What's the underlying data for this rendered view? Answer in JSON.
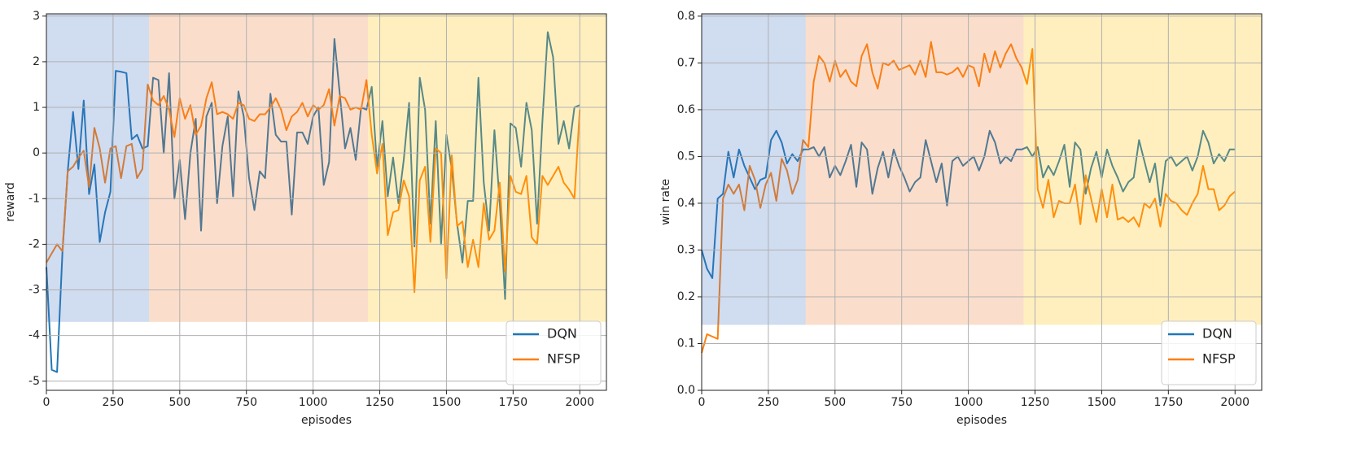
{
  "chart_data": [
    {
      "type": "line",
      "xlabel": "episodes",
      "ylabel": "reward",
      "xlim": [
        0,
        2100
      ],
      "ylim": [
        -5.2,
        3.05
      ],
      "xticks": [
        0,
        250,
        500,
        750,
        1000,
        1250,
        1500,
        1750,
        2000
      ],
      "yticks": [
        -5,
        -4,
        -3,
        -2,
        -1,
        0,
        1,
        2,
        3
      ],
      "grid": true,
      "legend": "lower right",
      "regions": [
        {
          "start": 0,
          "end": 385,
          "color": "#4472c4"
        },
        {
          "start": 385,
          "end": 1206,
          "color": "#ed7d31"
        },
        {
          "start": 1206,
          "end": 2100,
          "color": "#ffc000"
        }
      ],
      "region_bottom": -3.7,
      "region_alpha": 0.25,
      "x": [
        0,
        20,
        40,
        60,
        80,
        100,
        120,
        140,
        160,
        180,
        200,
        220,
        240,
        260,
        280,
        300,
        320,
        340,
        360,
        380,
        400,
        420,
        440,
        460,
        480,
        500,
        520,
        540,
        560,
        580,
        600,
        620,
        640,
        660,
        680,
        700,
        720,
        740,
        760,
        780,
        800,
        820,
        840,
        860,
        880,
        900,
        920,
        940,
        960,
        980,
        1000,
        1020,
        1040,
        1060,
        1080,
        1100,
        1120,
        1140,
        1160,
        1180,
        1200,
        1220,
        1240,
        1260,
        1280,
        1300,
        1320,
        1340,
        1360,
        1380,
        1400,
        1420,
        1440,
        1460,
        1480,
        1500,
        1520,
        1540,
        1560,
        1580,
        1600,
        1620,
        1640,
        1660,
        1680,
        1700,
        1720,
        1740,
        1760,
        1780,
        1800,
        1820,
        1840,
        1860,
        1880,
        1900,
        1920,
        1940,
        1960,
        1980,
        2000
      ],
      "series": [
        {
          "name": "DQN",
          "color": "#1f77b4",
          "values": [
            -2.5,
            -4.75,
            -4.8,
            -2.2,
            -0.4,
            0.9,
            -0.35,
            1.15,
            -0.9,
            -0.25,
            -1.95,
            -1.3,
            -0.85,
            1.8,
            1.78,
            1.75,
            0.3,
            0.4,
            0.1,
            0.15,
            1.65,
            1.6,
            0.0,
            1.75,
            -1.0,
            -0.15,
            -1.45,
            0.0,
            0.75,
            -1.7,
            0.8,
            1.1,
            -1.1,
            0.15,
            0.8,
            -0.95,
            1.35,
            0.8,
            -0.55,
            -1.25,
            -0.4,
            -0.55,
            1.3,
            0.4,
            0.25,
            0.25,
            -1.35,
            0.45,
            0.45,
            0.2,
            0.8,
            1.0,
            -0.7,
            -0.2,
            2.5,
            1.3,
            0.1,
            0.55,
            -0.15,
            1.0,
            0.95,
            1.45,
            -0.3,
            0.7,
            -0.95,
            -0.1,
            -1.1,
            -0.15,
            1.1,
            -2.05,
            1.65,
            0.95,
            -1.55,
            0.7,
            -2.0,
            0.4,
            -0.35,
            -1.55,
            -2.4,
            -1.05,
            -1.05,
            1.65,
            -0.65,
            -1.7,
            0.5,
            -1.1,
            -3.2,
            0.65,
            0.55,
            -0.3,
            1.1,
            0.5,
            -1.55,
            0.7,
            2.65,
            2.1,
            0.2,
            0.7,
            0.1,
            1.0,
            1.05
          ]
        },
        {
          "name": "NFSP",
          "color": "#ff7f0e",
          "values": [
            -2.4,
            -2.2,
            -2.0,
            -2.15,
            -0.4,
            -0.3,
            -0.1,
            0.05,
            -0.75,
            0.55,
            0.1,
            -0.65,
            0.1,
            0.15,
            -0.55,
            0.15,
            0.2,
            -0.55,
            -0.35,
            1.5,
            1.15,
            1.05,
            1.25,
            0.95,
            0.35,
            1.2,
            0.75,
            1.05,
            0.4,
            0.6,
            1.2,
            1.55,
            0.85,
            0.9,
            0.85,
            0.75,
            1.1,
            1.05,
            0.75,
            0.7,
            0.85,
            0.85,
            1.0,
            1.2,
            0.95,
            0.5,
            0.8,
            0.9,
            1.1,
            0.8,
            1.05,
            0.95,
            1.05,
            1.4,
            0.6,
            1.25,
            1.2,
            0.95,
            1.0,
            0.95,
            1.6,
            0.4,
            -0.45,
            0.2,
            -1.8,
            -1.3,
            -1.25,
            -0.6,
            -0.95,
            -3.05,
            -0.6,
            -0.3,
            -1.95,
            0.1,
            0.0,
            -2.75,
            -0.05,
            -1.6,
            -1.5,
            -2.5,
            -1.9,
            -2.5,
            -1.1,
            -1.9,
            -1.7,
            -0.65,
            -2.6,
            -0.5,
            -0.85,
            -0.9,
            -0.5,
            -1.85,
            -2.0,
            -0.5,
            -0.7,
            -0.5,
            -0.3,
            -0.65,
            -0.8,
            -1.0,
            0.95
          ]
        }
      ]
    },
    {
      "type": "line",
      "xlabel": "episodes",
      "ylabel": "win rate",
      "xlim": [
        0,
        2100
      ],
      "ylim": [
        0,
        0.805
      ],
      "xticks": [
        0,
        250,
        500,
        750,
        1000,
        1250,
        1500,
        1750,
        2000
      ],
      "yticks": [
        {
          "value": 0,
          "label": "0.0"
        },
        0.1,
        0.2,
        0.3,
        0.4,
        0.5,
        0.6,
        0.7,
        0.8
      ],
      "grid": true,
      "legend": "lower right",
      "regions": [
        {
          "start": 0,
          "end": 390,
          "color": "#4472c4"
        },
        {
          "start": 390,
          "end": 1207,
          "color": "#ed7d31"
        },
        {
          "start": 1207,
          "end": 2100,
          "color": "#ffc000"
        }
      ],
      "region_bottom": 0.14,
      "region_alpha": 0.25,
      "x": [
        0,
        20,
        40,
        60,
        80,
        100,
        120,
        140,
        160,
        180,
        200,
        220,
        240,
        260,
        280,
        300,
        320,
        340,
        360,
        380,
        400,
        420,
        440,
        460,
        480,
        500,
        520,
        540,
        560,
        580,
        600,
        620,
        640,
        660,
        680,
        700,
        720,
        740,
        760,
        780,
        800,
        820,
        840,
        860,
        880,
        900,
        920,
        940,
        960,
        980,
        1000,
        1020,
        1040,
        1060,
        1080,
        1100,
        1120,
        1140,
        1160,
        1180,
        1200,
        1220,
        1240,
        1260,
        1280,
        1300,
        1320,
        1340,
        1360,
        1380,
        1400,
        1420,
        1440,
        1460,
        1480,
        1500,
        1520,
        1540,
        1560,
        1580,
        1600,
        1620,
        1640,
        1660,
        1680,
        1700,
        1720,
        1740,
        1760,
        1780,
        1800,
        1820,
        1840,
        1860,
        1880,
        1900,
        1920,
        1940,
        1960,
        1980,
        2000
      ],
      "series": [
        {
          "name": "DQN",
          "color": "#1f77b4",
          "values": [
            0.3,
            0.26,
            0.24,
            0.41,
            0.42,
            0.51,
            0.455,
            0.515,
            0.48,
            0.455,
            0.43,
            0.45,
            0.455,
            0.535,
            0.555,
            0.53,
            0.485,
            0.505,
            0.49,
            0.515,
            0.515,
            0.52,
            0.5,
            0.52,
            0.455,
            0.48,
            0.46,
            0.49,
            0.525,
            0.435,
            0.53,
            0.515,
            0.42,
            0.475,
            0.51,
            0.455,
            0.515,
            0.48,
            0.455,
            0.425,
            0.445,
            0.455,
            0.535,
            0.49,
            0.445,
            0.485,
            0.395,
            0.49,
            0.5,
            0.48,
            0.49,
            0.5,
            0.47,
            0.5,
            0.555,
            0.53,
            0.485,
            0.5,
            0.49,
            0.515,
            0.515,
            0.52,
            0.5,
            0.52,
            0.455,
            0.48,
            0.46,
            0.49,
            0.525,
            0.435,
            0.53,
            0.515,
            0.42,
            0.475,
            0.51,
            0.455,
            0.515,
            0.48,
            0.455,
            0.425,
            0.445,
            0.455,
            0.535,
            0.49,
            0.445,
            0.485,
            0.395,
            0.49,
            0.5,
            0.48,
            0.49,
            0.5,
            0.47,
            0.5,
            0.555,
            0.53,
            0.485,
            0.505,
            0.49,
            0.515,
            0.515
          ]
        },
        {
          "name": "NFSP",
          "color": "#ff7f0e",
          "values": [
            0.08,
            0.12,
            0.115,
            0.11,
            0.41,
            0.44,
            0.42,
            0.44,
            0.385,
            0.48,
            0.45,
            0.39,
            0.44,
            0.465,
            0.405,
            0.495,
            0.47,
            0.42,
            0.45,
            0.535,
            0.52,
            0.66,
            0.715,
            0.7,
            0.66,
            0.705,
            0.67,
            0.685,
            0.66,
            0.65,
            0.715,
            0.74,
            0.68,
            0.645,
            0.7,
            0.695,
            0.705,
            0.685,
            0.69,
            0.695,
            0.675,
            0.705,
            0.67,
            0.745,
            0.68,
            0.68,
            0.675,
            0.68,
            0.69,
            0.67,
            0.695,
            0.69,
            0.65,
            0.72,
            0.68,
            0.725,
            0.69,
            0.72,
            0.74,
            0.71,
            0.69,
            0.655,
            0.73,
            0.43,
            0.39,
            0.45,
            0.37,
            0.405,
            0.4,
            0.4,
            0.44,
            0.355,
            0.46,
            0.41,
            0.36,
            0.43,
            0.37,
            0.44,
            0.365,
            0.37,
            0.36,
            0.37,
            0.35,
            0.4,
            0.39,
            0.41,
            0.35,
            0.42,
            0.405,
            0.4,
            0.385,
            0.375,
            0.4,
            0.42,
            0.48,
            0.43,
            0.43,
            0.385,
            0.395,
            0.415,
            0.425
          ]
        }
      ]
    }
  ]
}
